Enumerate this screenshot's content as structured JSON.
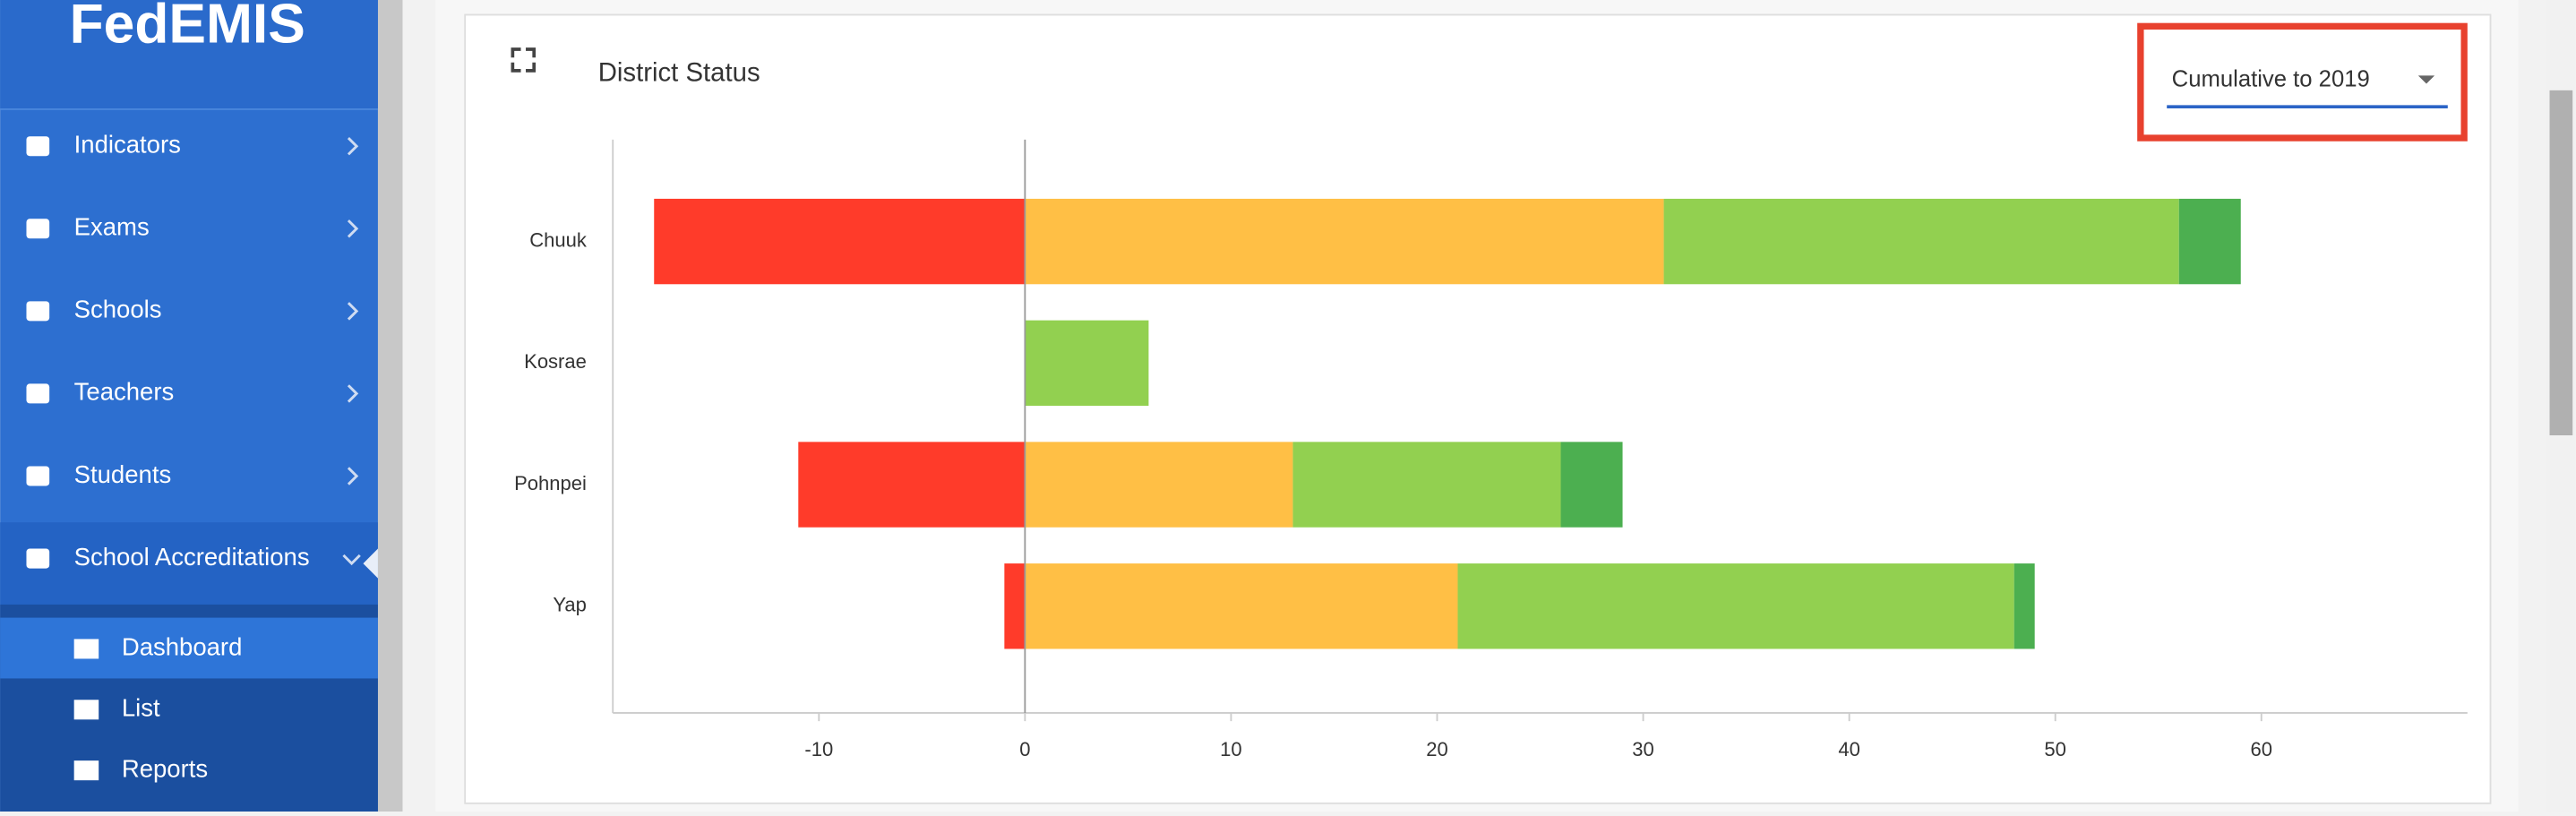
{
  "sidebar": {
    "title": "FedEMIS",
    "items": [
      "Indicators",
      "Exams",
      "Schools",
      "Teachers",
      "Students",
      "School Accreditations"
    ],
    "submenu": [
      "Dashboard",
      "List",
      "Reports"
    ]
  },
  "dropdown": "Cumulative to 2019",
  "chart_data": {
    "type": "stacked-hbar",
    "title": "District Status",
    "categories": [
      "Chuuk",
      "Kosrae",
      "Pohnpei",
      "Yap"
    ],
    "series": [
      {
        "color": "#ff3b2a",
        "values": [
          -18,
          0,
          -11,
          -1
        ]
      },
      {
        "color": "#ffbf45",
        "values": [
          31,
          0,
          13,
          21
        ]
      },
      {
        "color": "#92d050",
        "values": [
          25,
          6,
          13,
          27
        ]
      },
      {
        "color": "#4caf50",
        "values": [
          3,
          0,
          3,
          1
        ]
      }
    ],
    "xlim": [
      -20,
      70
    ],
    "xticks": [
      -10,
      0,
      10,
      20,
      30,
      40,
      50,
      60
    ]
  }
}
